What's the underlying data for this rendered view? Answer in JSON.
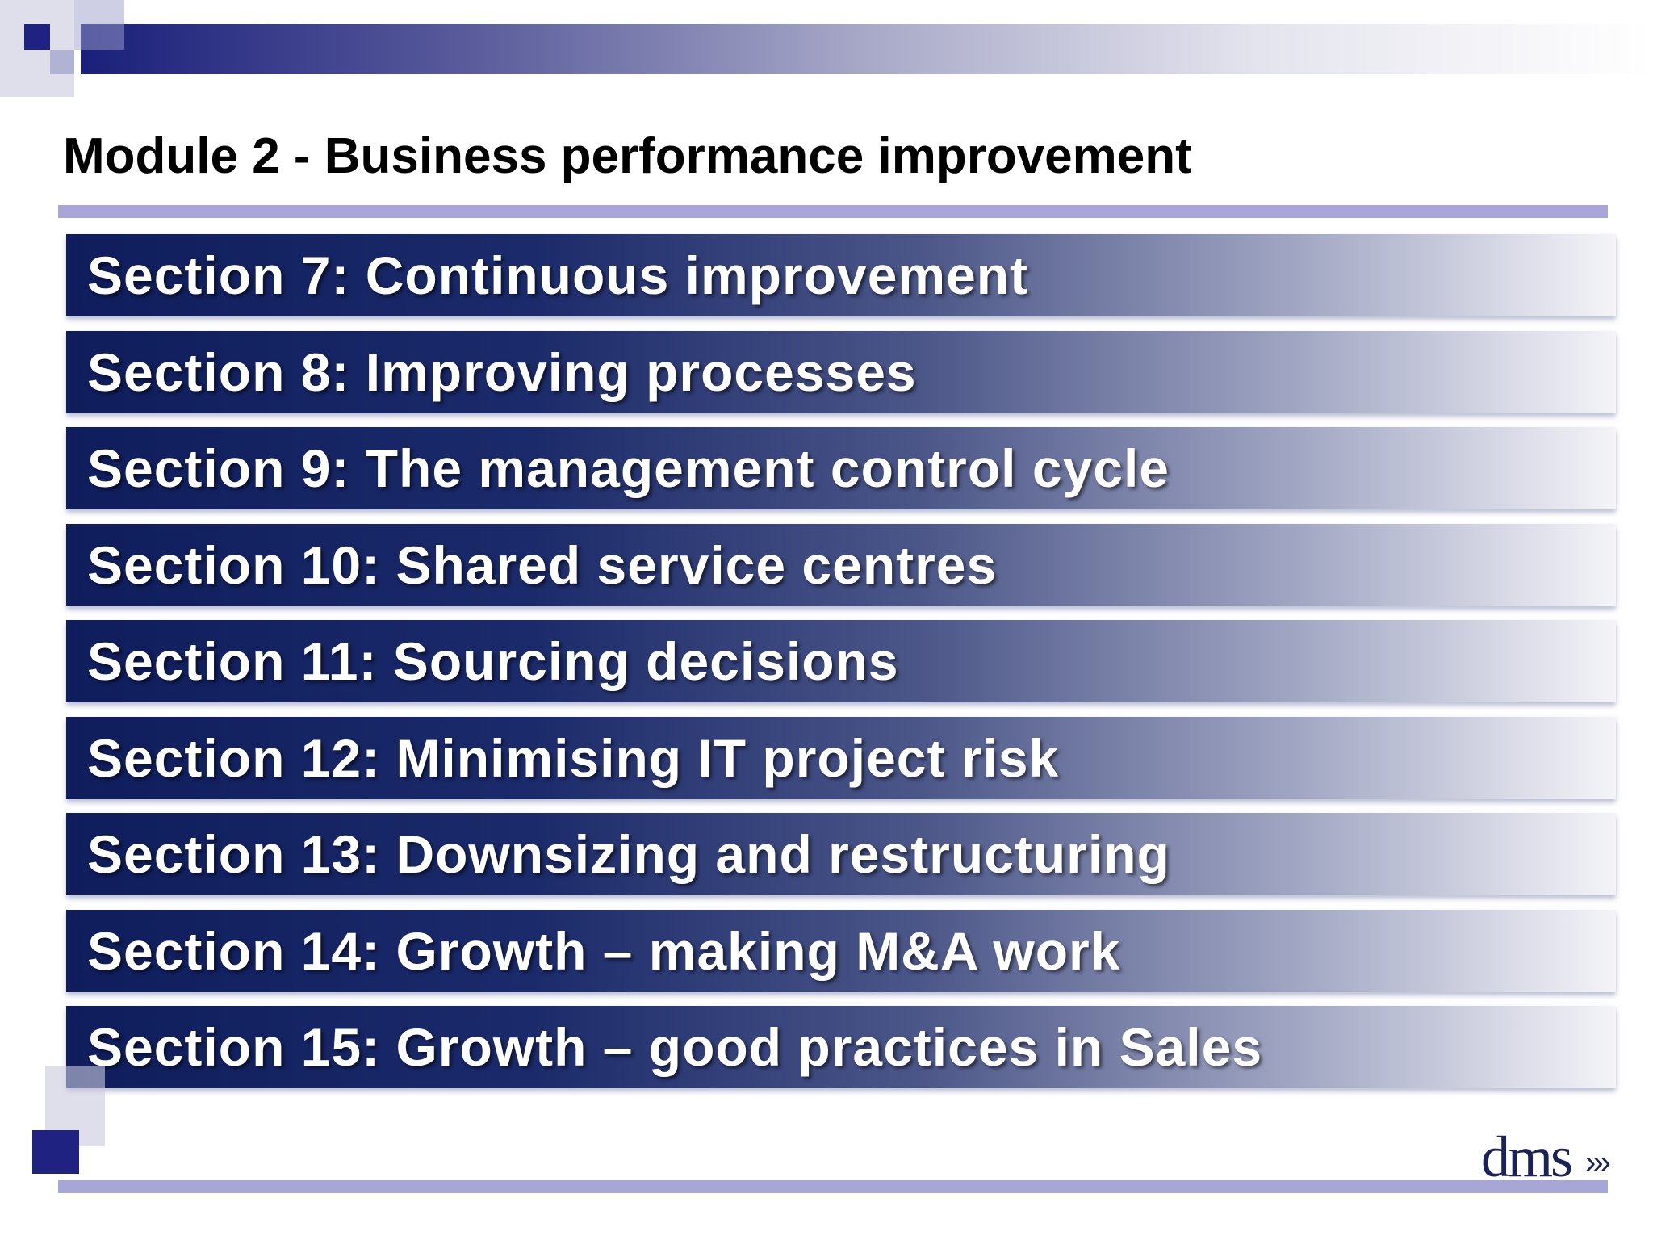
{
  "header": {
    "title": "Module 2 - Business performance improvement"
  },
  "sections": [
    "Section 7: Continuous improvement",
    "Section 8: Improving processes",
    "Section 9: The management control cycle",
    "Section 10: Shared service centres",
    "Section 11: Sourcing decisions",
    "Section 12: Minimising IT project risk",
    "Section 13: Downsizing and restructuring",
    "Section 14: Growth – making M&A work",
    "Section 15: Growth – good practices in Sales"
  ],
  "footer": {
    "logo": "dms",
    "chevrons": "›››"
  }
}
